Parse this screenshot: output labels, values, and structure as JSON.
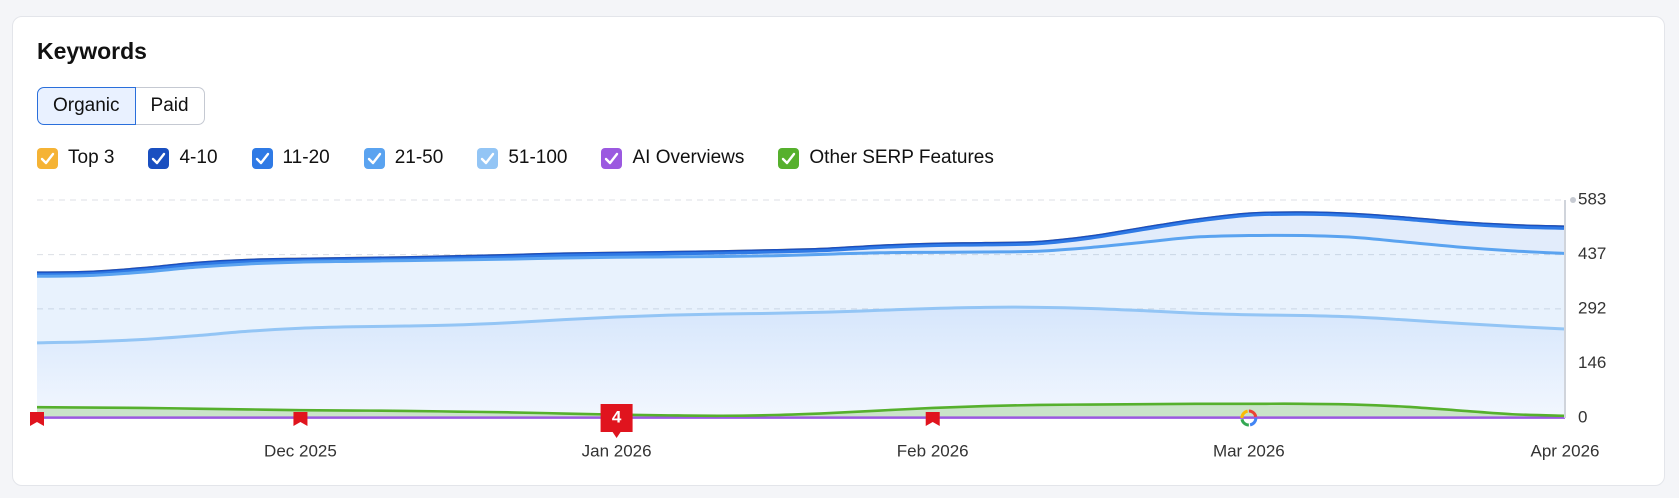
{
  "tabs": [
    "Organic",
    "Paid"
  ],
  "chart_data": {
    "type": "area",
    "title": "Keywords",
    "categories": [
      null,
      null,
      null,
      null,
      null,
      "Dec 2025",
      null,
      null,
      null,
      null,
      null,
      "Jan 2026",
      null,
      null,
      null,
      null,
      null,
      "Feb 2026",
      null,
      null,
      null,
      null,
      null,
      "Mar 2026",
      null,
      null,
      null,
      null,
      null,
      "Apr 2026"
    ],
    "annotations": [
      "4"
    ],
    "ylim": [
      0,
      583
    ],
    "yticks": [
      0,
      146,
      292,
      437,
      583
    ],
    "grid": true,
    "series": [
      {
        "name": "Top 3",
        "color": "#f5b335",
        "stacked": true,
        "values": [
          0,
          0,
          0,
          0,
          0,
          0,
          0,
          0,
          0,
          0,
          0,
          0,
          0,
          0,
          0,
          0,
          0,
          0,
          0,
          0,
          0,
          0,
          0,
          0,
          0,
          0,
          0,
          0,
          0,
          0
        ]
      },
      {
        "name": "4-10",
        "color": "#1a4fc0",
        "stacked": true,
        "values": [
          4,
          4,
          4,
          4,
          4,
          4,
          4,
          4,
          4,
          4,
          4,
          4,
          4,
          4,
          4,
          4,
          4,
          4,
          4,
          4,
          4,
          4,
          4,
          4,
          4,
          4,
          4,
          4,
          4,
          4
        ]
      },
      {
        "name": "11-20",
        "color": "#2f7ae5",
        "stacked": true,
        "values": [
          5,
          5,
          6,
          7,
          6,
          4,
          4,
          4,
          5,
          6,
          7,
          7,
          8,
          9,
          10,
          10,
          14,
          18,
          19,
          20,
          25,
          34,
          42,
          54,
          57,
          58,
          61,
          62,
          64,
          67
        ]
      },
      {
        "name": "21-50",
        "color": "#5aa3f0",
        "stacked": true,
        "values": [
          178,
          177,
          180,
          183,
          180,
          177,
          175,
          175,
          174,
          170,
          165,
          160,
          156,
          154,
          154,
          155,
          154,
          150,
          148,
          150,
          163,
          183,
          204,
          212,
          214,
          213,
          208,
          204,
          202,
          202
        ]
      },
      {
        "name": "51-100",
        "color": "#93c5f5",
        "stacked": true,
        "values": [
          201,
          204,
          210,
          220,
          232,
          240,
          244,
          246,
          249,
          255,
          263,
          270,
          275,
          278,
          280,
          283,
          288,
          293,
          296,
          296,
          293,
          287,
          280,
          276,
          274,
          270,
          262,
          253,
          245,
          238
        ]
      },
      {
        "name": "AI Overviews",
        "color": "#9b59e0",
        "stacked": false,
        "values": [
          1,
          1,
          1,
          1,
          1,
          1,
          1,
          1,
          1,
          1,
          1,
          1,
          1,
          1,
          1,
          1,
          1,
          1,
          1,
          1,
          1,
          1,
          1,
          1,
          1,
          1,
          1,
          1,
          1,
          1
        ]
      },
      {
        "name": "Other SERP Features",
        "color": "#56b02d",
        "stacked": false,
        "values": [
          29,
          28,
          27,
          25,
          23,
          21,
          20,
          19,
          17,
          15,
          12,
          9,
          7,
          6,
          8,
          13,
          20,
          27,
          32,
          35,
          36,
          37,
          38,
          38,
          38,
          36,
          30,
          20,
          10,
          6
        ]
      }
    ]
  }
}
